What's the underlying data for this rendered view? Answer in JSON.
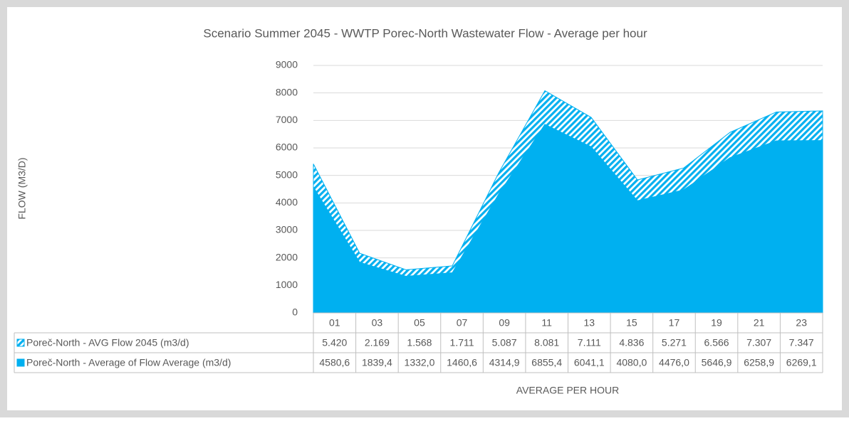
{
  "chart_data": {
    "type": "area",
    "title": "Scenario Summer 2045 - WWTP Porec-North Wastewater Flow - Average per hour",
    "y_label": "FLOW (M3/D)",
    "x_label": "AVERAGE PER HOUR",
    "categories": [
      "01",
      "03",
      "05",
      "07",
      "09",
      "11",
      "13",
      "15",
      "17",
      "19",
      "21",
      "23"
    ],
    "series": [
      {
        "name": "Poreč-North - AVG Flow 2045 (m3/d)",
        "color": "#00b0f0",
        "pattern": "hatch",
        "values": [
          5420,
          2169,
          1568,
          1711,
          5087,
          8081,
          7111,
          4836,
          5271,
          6566,
          7307,
          7347
        ],
        "value_labels": [
          "5.420",
          "2.169",
          "1.568",
          "1.711",
          "5.087",
          "8.081",
          "7.111",
          "4.836",
          "5.271",
          "6.566",
          "7.307",
          "7.347"
        ]
      },
      {
        "name": "Poreč-North - Average of Flow Average (m3/d)",
        "color": "#00b0f0",
        "pattern": "solid",
        "values": [
          4580.6,
          1839.4,
          1332.0,
          1460.6,
          4314.9,
          6855.4,
          6041.1,
          4080.0,
          4476.0,
          5646.9,
          6258.9,
          6269.1
        ],
        "value_labels": [
          "4580,6",
          "1839,4",
          "1332,0",
          "1460,6",
          "4314,9",
          "6855,4",
          "6041,1",
          "4080,0",
          "4476,0",
          "5646,9",
          "6258,9",
          "6269,1"
        ]
      }
    ],
    "ylim": [
      0,
      9000
    ],
    "yticks": [
      0,
      1000,
      2000,
      3000,
      4000,
      5000,
      6000,
      7000,
      8000,
      9000
    ],
    "grid": true
  }
}
